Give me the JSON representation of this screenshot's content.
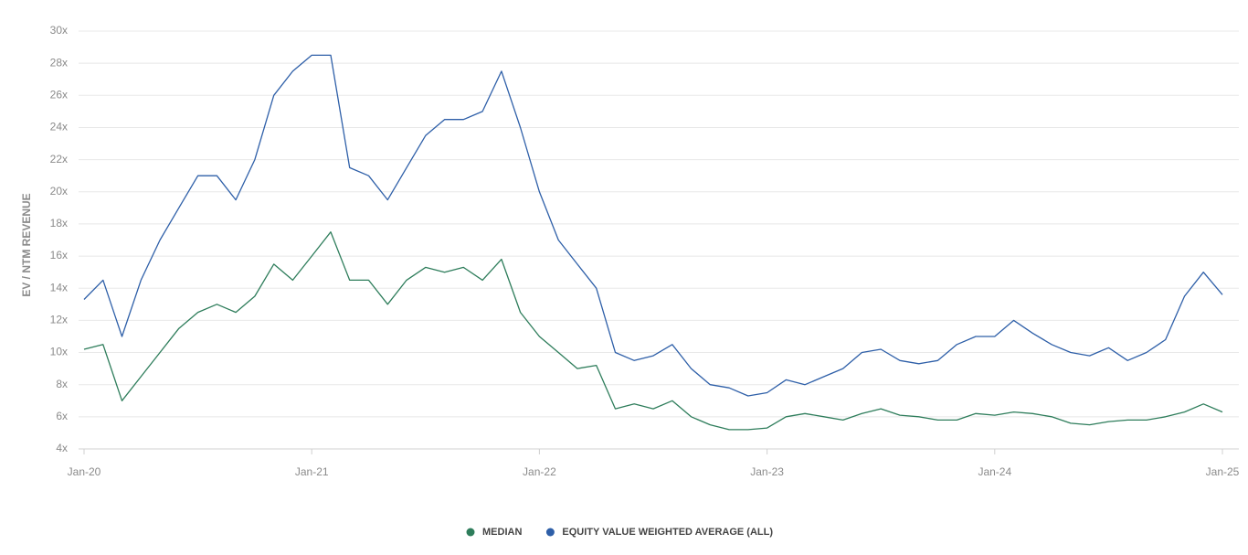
{
  "chart_data": {
    "type": "line",
    "y_axis_label": "EV / NTM REVENUE",
    "x": [
      "2020-01",
      "2020-02",
      "2020-03",
      "2020-04",
      "2020-05",
      "2020-06",
      "2020-07",
      "2020-08",
      "2020-09",
      "2020-10",
      "2020-11",
      "2020-12",
      "2021-01",
      "2021-02",
      "2021-03",
      "2021-04",
      "2021-05",
      "2021-06",
      "2021-07",
      "2021-08",
      "2021-09",
      "2021-10",
      "2021-11",
      "2021-12",
      "2022-01",
      "2022-02",
      "2022-03",
      "2022-04",
      "2022-05",
      "2022-06",
      "2022-07",
      "2022-08",
      "2022-09",
      "2022-10",
      "2022-11",
      "2022-12",
      "2023-01",
      "2023-02",
      "2023-03",
      "2023-04",
      "2023-05",
      "2023-06",
      "2023-07",
      "2023-08",
      "2023-09",
      "2023-10",
      "2023-11",
      "2023-12",
      "2024-01",
      "2024-02",
      "2024-03",
      "2024-04",
      "2024-05",
      "2024-06",
      "2024-07",
      "2024-08",
      "2024-09",
      "2024-10",
      "2024-11",
      "2024-12",
      "2025-01"
    ],
    "series": [
      {
        "name": "MEDIAN",
        "color": "#2e7d5b",
        "values": [
          10.2,
          10.5,
          7,
          8.5,
          10,
          11.5,
          12.5,
          13,
          12.5,
          13.5,
          15.5,
          14.5,
          16,
          17.5,
          14.5,
          14.5,
          13,
          14.5,
          15.3,
          15,
          15.3,
          14.5,
          15.8,
          12.5,
          11,
          10,
          9,
          9.2,
          6.5,
          6.8,
          6.5,
          7,
          6,
          5.5,
          5.2,
          5.2,
          5.3,
          6,
          6.2,
          6,
          5.8,
          6.2,
          6.5,
          6.1,
          6,
          5.8,
          5.8,
          6.2,
          6.1,
          6.3,
          6.2,
          6,
          5.6,
          5.5,
          5.7,
          5.8,
          5.8,
          6,
          6.3,
          6.8,
          6.3
        ]
      },
      {
        "name": "EQUITY VALUE WEIGHTED AVERAGE (ALL)",
        "color": "#2e5fa8",
        "values": [
          13.3,
          14.5,
          11,
          14.5,
          17,
          19,
          21,
          21,
          19.5,
          22,
          26,
          27.5,
          28.5,
          28.5,
          21.5,
          21,
          19.5,
          21.5,
          23.5,
          24.5,
          24.5,
          25,
          27.5,
          24,
          20,
          17,
          15.5,
          14,
          10,
          9.5,
          9.8,
          10.5,
          9,
          8,
          7.8,
          7.3,
          7.5,
          8.3,
          8,
          8.5,
          9,
          10,
          10.2,
          9.5,
          9.3,
          9.5,
          10.5,
          11,
          11,
          12,
          11.2,
          10.5,
          10,
          9.8,
          10.3,
          9.5,
          10,
          10.8,
          13.5,
          15,
          13.6
        ]
      }
    ],
    "xlim": [
      "2020-01",
      "2025-01"
    ],
    "xticks": [
      {
        "value": "2020-01",
        "label": "Jan-20"
      },
      {
        "value": "2021-01",
        "label": "Jan-21"
      },
      {
        "value": "2022-01",
        "label": "Jan-22"
      },
      {
        "value": "2023-01",
        "label": "Jan-23"
      },
      {
        "value": "2024-01",
        "label": "Jan-24"
      },
      {
        "value": "2025-01",
        "label": "Jan-25"
      }
    ],
    "ylim": [
      4,
      30
    ],
    "yticks": [
      {
        "value": 4,
        "label": "4x"
      },
      {
        "value": 6,
        "label": "6x"
      },
      {
        "value": 8,
        "label": "8x"
      },
      {
        "value": 10,
        "label": "10x"
      },
      {
        "value": 12,
        "label": "12x"
      },
      {
        "value": 14,
        "label": "14x"
      },
      {
        "value": 16,
        "label": "16x"
      },
      {
        "value": 18,
        "label": "18x"
      },
      {
        "value": 20,
        "label": "20x"
      },
      {
        "value": 22,
        "label": "22x"
      },
      {
        "value": 24,
        "label": "24x"
      },
      {
        "value": 26,
        "label": "26x"
      },
      {
        "value": 28,
        "label": "28x"
      },
      {
        "value": 30,
        "label": "30x"
      }
    ],
    "grid": true,
    "legend": "bottom"
  }
}
